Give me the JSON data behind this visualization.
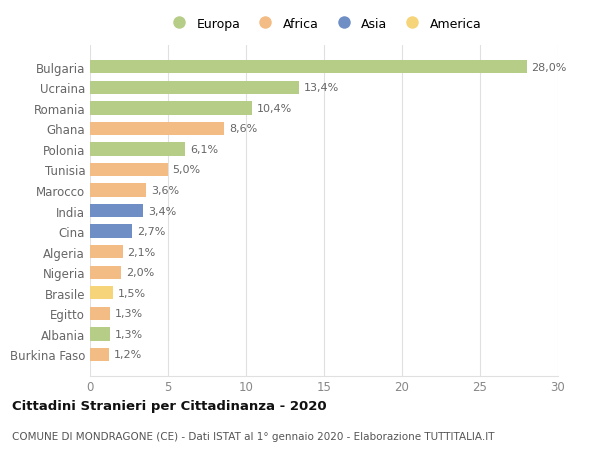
{
  "countries": [
    "Burkina Faso",
    "Albania",
    "Egitto",
    "Brasile",
    "Nigeria",
    "Algeria",
    "Cina",
    "India",
    "Marocco",
    "Tunisia",
    "Polonia",
    "Ghana",
    "Romania",
    "Ucraina",
    "Bulgaria"
  ],
  "values": [
    1.2,
    1.3,
    1.3,
    1.5,
    2.0,
    2.1,
    2.7,
    3.4,
    3.6,
    5.0,
    6.1,
    8.6,
    10.4,
    13.4,
    28.0
  ],
  "labels": [
    "1,2%",
    "1,3%",
    "1,3%",
    "1,5%",
    "2,0%",
    "2,1%",
    "2,7%",
    "3,4%",
    "3,6%",
    "5,0%",
    "6,1%",
    "8,6%",
    "10,4%",
    "13,4%",
    "28,0%"
  ],
  "colors": [
    "#f2bc84",
    "#b5cd86",
    "#f2bc84",
    "#f5d47a",
    "#f2bc84",
    "#f2bc84",
    "#6e8ec5",
    "#6e8ec5",
    "#f2bc84",
    "#f2bc84",
    "#b5cd86",
    "#f2bc84",
    "#b5cd86",
    "#b5cd86",
    "#b5cd86"
  ],
  "legend_labels": [
    "Europa",
    "Africa",
    "Asia",
    "America"
  ],
  "legend_colors": [
    "#b5cd86",
    "#f2bc84",
    "#6e8ec5",
    "#f5d47a"
  ],
  "title": "Cittadini Stranieri per Cittadinanza - 2020",
  "subtitle": "COMUNE DI MONDRAGONE (CE) - Dati ISTAT al 1° gennaio 2020 - Elaborazione TUTTITALIA.IT",
  "xlim": [
    0,
    30
  ],
  "xticks": [
    0,
    5,
    10,
    15,
    20,
    25,
    30
  ],
  "bg_color": "#ffffff",
  "grid_color": "#e0e0e0"
}
